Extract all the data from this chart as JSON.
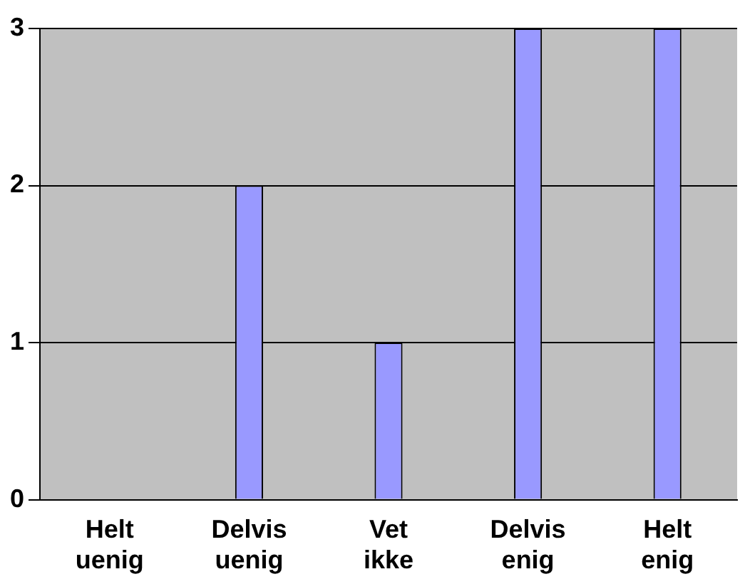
{
  "chart_data": {
    "type": "bar",
    "categories": [
      "Helt uenig",
      "Delvis uenig",
      "Vet ikke",
      "Delvis enig",
      "Helt enig"
    ],
    "values": [
      0,
      2,
      1,
      3,
      3
    ],
    "color": "#9999ff",
    "ylim": [
      0,
      3
    ],
    "yticks": [
      0,
      1,
      2,
      3
    ],
    "grid": "y",
    "legend": false
  }
}
